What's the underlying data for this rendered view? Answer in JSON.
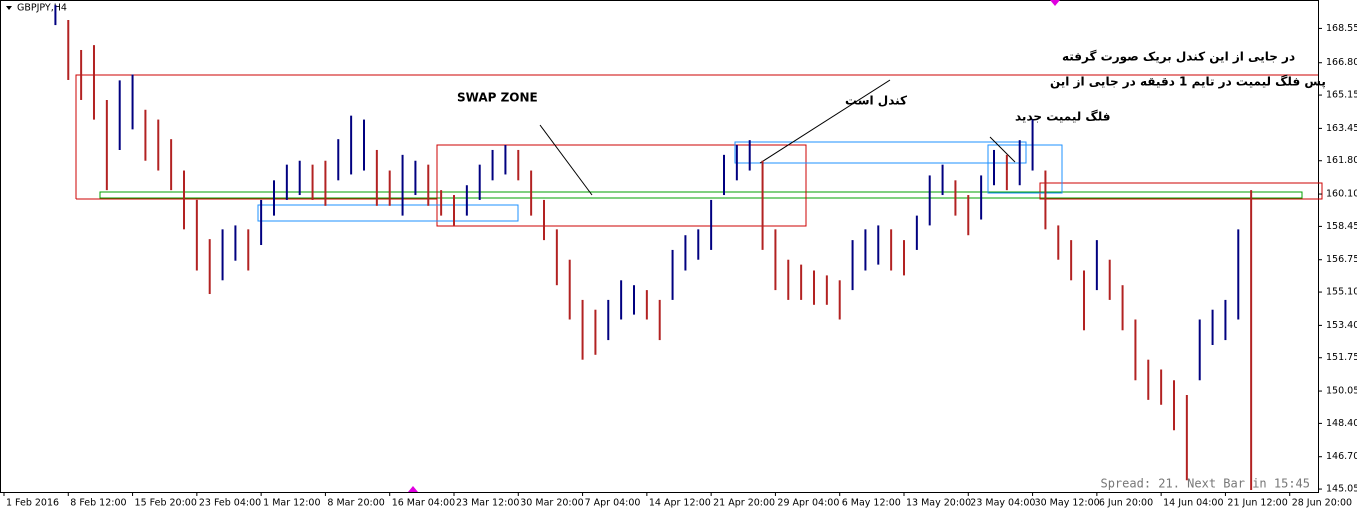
{
  "chart_data": {
    "type": "ohlc",
    "title": "GBPJPY,H4",
    "annotations": [
      "SWAP ZONE",
      "در جایی از این کندل بریک صورت گرفته",
      "پس فلگ لیمیت در تایم 1 دقیقه در جایی از این",
      "کندل است",
      "فلگ لیمیت جدید"
    ],
    "status": "Spread: 21. Next Bar in 15:45",
    "x": [
      0,
      1,
      2,
      3,
      4,
      5,
      6,
      7,
      8,
      9,
      10,
      11,
      12,
      13,
      14,
      15,
      16,
      17,
      18,
      19,
      20,
      21,
      22,
      23,
      24,
      25,
      26,
      27,
      28,
      29,
      30,
      31,
      32,
      33,
      34,
      35,
      36,
      37,
      38,
      39,
      40,
      41,
      42,
      43,
      44,
      45,
      46,
      47,
      48,
      49,
      50,
      51,
      52,
      53,
      54,
      55,
      56,
      57,
      58,
      59,
      60,
      61,
      62,
      63,
      64,
      65,
      66,
      67,
      68,
      69,
      70,
      71,
      72,
      73,
      74,
      75,
      76,
      77,
      78,
      79,
      80,
      81,
      82,
      83,
      84,
      85,
      86,
      87,
      88,
      89,
      90,
      91,
      92,
      93,
      94,
      95,
      96,
      97
    ],
    "high": [
      null,
      null,
      null,
      null,
      169.74,
      168.98,
      167.45,
      167.7,
      164.9,
      165.9,
      166.2,
      164.4,
      163.9,
      162.9,
      161.3,
      159.8,
      157.8,
      158.3,
      158.5,
      158.3,
      159.8,
      160.8,
      161.6,
      161.8,
      161.6,
      161.8,
      162.9,
      164.1,
      163.9,
      162.35,
      161.3,
      162.1,
      161.8,
      161.6,
      160.3,
      160.05,
      160.55,
      161.6,
      162.35,
      162.6,
      162.35,
      161.3,
      159.8,
      158.3,
      156.75,
      154.7,
      154.2,
      154.7,
      155.7,
      155.45,
      155.2,
      154.7,
      157.25,
      158.0,
      158.3,
      159.8,
      162.1,
      162.6,
      162.85,
      161.8,
      158.3,
      156.75,
      156.5,
      156.2,
      155.95,
      155.7,
      157.75,
      158.3,
      158.5,
      158.3,
      157.75,
      159.0,
      161.05,
      161.6,
      160.8,
      160.05,
      161.05,
      162.35,
      162.1,
      162.85,
      163.9,
      161.3,
      158.5,
      157.75,
      156.2,
      157.75,
      156.75,
      155.45,
      153.7,
      151.65,
      151.15,
      150.6,
      149.85,
      153.7,
      154.2,
      154.7,
      158.3,
      160.3
    ],
    "low": [
      null,
      null,
      null,
      null,
      168.72,
      165.92,
      164.9,
      163.9,
      160.3,
      162.35,
      163.4,
      161.8,
      161.3,
      160.3,
      158.3,
      156.2,
      155.0,
      155.7,
      156.7,
      156.2,
      157.5,
      159.0,
      159.8,
      160.05,
      159.8,
      159.5,
      160.8,
      161.1,
      161.3,
      159.5,
      159.5,
      159.0,
      160.05,
      159.5,
      159.0,
      158.5,
      159.0,
      159.8,
      160.8,
      161.1,
      160.8,
      159.0,
      157.75,
      155.45,
      153.7,
      151.65,
      151.9,
      152.65,
      153.7,
      153.95,
      153.7,
      152.65,
      154.7,
      156.2,
      156.75,
      157.25,
      160.05,
      160.8,
      161.3,
      157.25,
      155.2,
      154.7,
      154.7,
      154.45,
      154.45,
      153.7,
      155.2,
      156.2,
      156.5,
      156.2,
      155.95,
      157.25,
      158.5,
      160.05,
      159.0,
      158.0,
      158.8,
      160.55,
      160.3,
      160.55,
      161.3,
      158.3,
      156.75,
      155.7,
      153.15,
      155.2,
      154.7,
      153.15,
      150.6,
      149.6,
      149.35,
      148.05,
      145.5,
      150.6,
      152.4,
      152.65,
      153.7,
      145.0
    ],
    "up_color": "#000080",
    "down_color": "#b22222",
    "xlim": [
      -0.31,
      102.2
    ],
    "xticks": [
      {
        "value": 0,
        "label": "1 Feb 2016"
      },
      {
        "value": 5,
        "label": "8 Feb 12:00"
      },
      {
        "value": 10,
        "label": "15 Feb 20:00"
      },
      {
        "value": 15,
        "label": "23 Feb 04:00"
      },
      {
        "value": 20,
        "label": "1 Mar 12:00"
      },
      {
        "value": 25,
        "label": "8 Mar 20:00"
      },
      {
        "value": 30,
        "label": "16 Mar 04:00"
      },
      {
        "value": 35,
        "label": "23 Mar 12:00"
      },
      {
        "value": 40,
        "label": "30 Mar 20:00"
      },
      {
        "value": 45,
        "label": "7 Apr 04:00"
      },
      {
        "value": 50,
        "label": "14 Apr 12:00"
      },
      {
        "value": 55,
        "label": "21 Apr 20:00"
      },
      {
        "value": 60,
        "label": "29 Apr 04:00"
      },
      {
        "value": 65,
        "label": "6 May 12:00"
      },
      {
        "value": 70,
        "label": "13 May 20:00"
      },
      {
        "value": 75,
        "label": "23 May 04:00"
      },
      {
        "value": 80,
        "label": "30 May 12:00"
      },
      {
        "value": 85,
        "label": "6 Jun 20:00"
      },
      {
        "value": 90,
        "label": "14 Jun 04:00"
      },
      {
        "value": 95,
        "label": "21 Jun 12:00"
      },
      {
        "value": 100,
        "label": "28 Jun 20:00"
      }
    ],
    "ylim": [
      144.9,
      170.0
    ],
    "yticks": [
      {
        "value": 168.55,
        "label": "168.550"
      },
      {
        "value": 166.8,
        "label": "166.800"
      },
      {
        "value": 165.15,
        "label": "165.150"
      },
      {
        "value": 163.45,
        "label": "163.450"
      },
      {
        "value": 161.8,
        "label": "161.800"
      },
      {
        "value": 160.1,
        "label": "160.100"
      },
      {
        "value": 158.45,
        "label": "158.450"
      },
      {
        "value": 156.75,
        "label": "156.750"
      },
      {
        "value": 155.1,
        "label": "155.100"
      },
      {
        "value": 153.4,
        "label": "153.400"
      },
      {
        "value": 151.75,
        "label": "151.750"
      },
      {
        "value": 150.05,
        "label": "150.050"
      },
      {
        "value": 148.4,
        "label": "148.400"
      },
      {
        "value": 146.7,
        "label": "146.700"
      },
      {
        "value": 145.05,
        "label": "145.050"
      }
    ]
  }
}
